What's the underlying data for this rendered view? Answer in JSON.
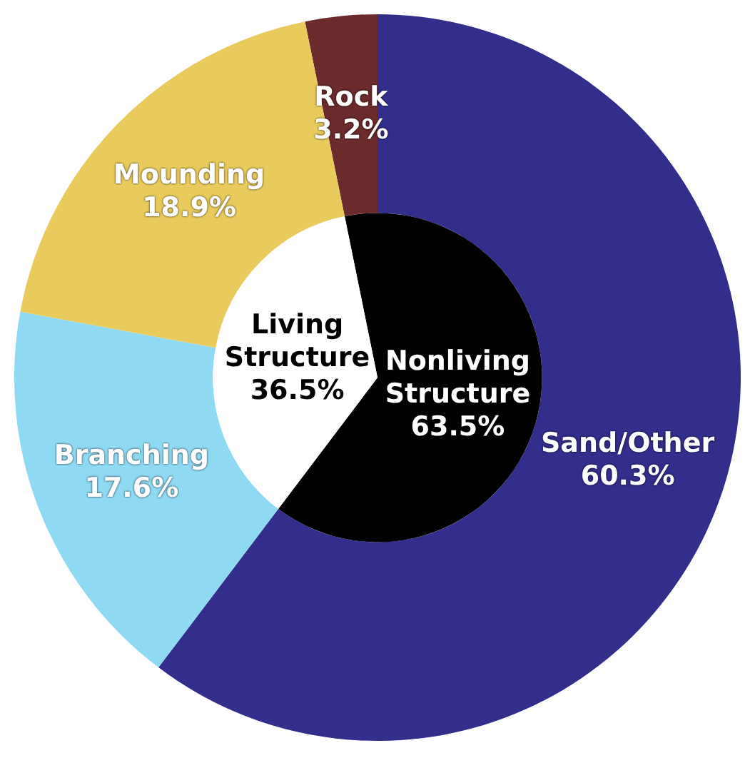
{
  "chart_data": [
    {
      "type": "donut",
      "categories": [
        "Rock",
        "Sand/Other",
        "Branching",
        "Mounding"
      ],
      "values": [
        3.2,
        60.3,
        17.6,
        18.9
      ],
      "value_labels": [
        "3.2%",
        "60.3%",
        "17.6%",
        "18.9%"
      ],
      "colors": [
        "#6b2a2c",
        "#332d8c",
        "#8fd9f2",
        "#e8cb5c"
      ]
    },
    {
      "type": "pie",
      "categories": [
        "Nonliving Structure",
        "Living Structure"
      ],
      "values": [
        63.5,
        36.5
      ],
      "value_labels": [
        "63.5%",
        "36.5%"
      ],
      "colors": [
        "#000000",
        "#ffffff"
      ]
    }
  ]
}
